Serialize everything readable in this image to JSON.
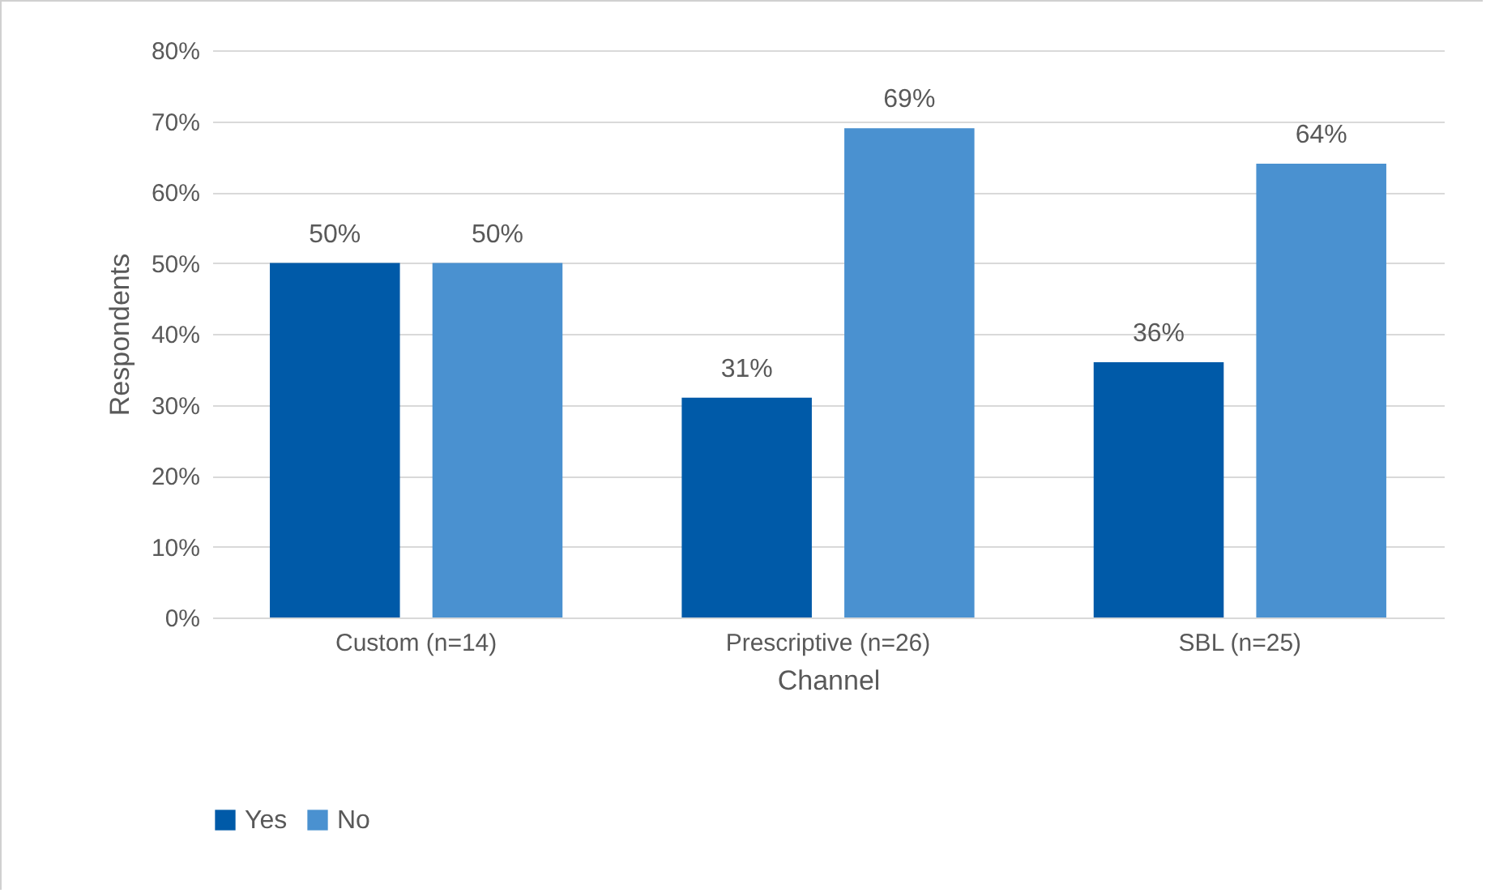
{
  "chart_data": {
    "type": "bar",
    "xlabel": "Channel",
    "ylabel": "Respondents",
    "categories": [
      "Custom (n=14)",
      "Prescriptive (n=26)",
      "SBL (n=25)"
    ],
    "series": [
      {
        "name": "Yes",
        "color": "#005aa8",
        "values": [
          50,
          31,
          36
        ],
        "value_labels": [
          "50%",
          "31%",
          "36%"
        ]
      },
      {
        "name": "No",
        "color": "#4a91d0",
        "values": [
          50,
          69,
          64
        ],
        "value_labels": [
          "50%",
          "69%",
          "64%"
        ]
      }
    ],
    "ylim": [
      0,
      80
    ],
    "yticks": [
      {
        "value": 0,
        "label": "0%"
      },
      {
        "value": 10,
        "label": "10%"
      },
      {
        "value": 20,
        "label": "20%"
      },
      {
        "value": 30,
        "label": "30%"
      },
      {
        "value": 40,
        "label": "40%"
      },
      {
        "value": 50,
        "label": "50%"
      },
      {
        "value": 60,
        "label": "60%"
      },
      {
        "value": 70,
        "label": "70%"
      },
      {
        "value": 80,
        "label": "80%"
      }
    ],
    "grid": "y",
    "legend": "bottom"
  }
}
